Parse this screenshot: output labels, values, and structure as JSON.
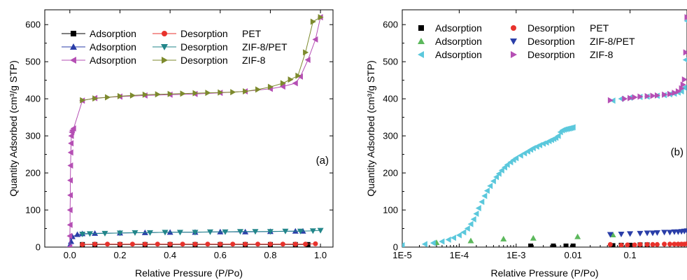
{
  "chart_data": [
    {
      "type": "line",
      "panel_label": "(a)",
      "xlabel": "Relative Pressure (P/Po)",
      "ylabel": "Quantity Adsorbed (cm³/g STP)",
      "xlim": [
        -0.1,
        1.05
      ],
      "ylim": [
        0,
        640
      ],
      "xticks": [
        "0.0",
        "0.2",
        "0.4",
        "0.6",
        "0.8",
        "1.0"
      ],
      "yticks": [
        "0",
        "100",
        "200",
        "300",
        "400",
        "500",
        "600"
      ],
      "legend": {
        "placement": "top-left",
        "col1": [
          "Adsorption",
          "Adsorption",
          "Adsorption"
        ],
        "col2": [
          "Desorption",
          "Desorption",
          "Desorption"
        ],
        "col3": [
          "PET",
          "ZIF-8/PET",
          "ZIF-8"
        ]
      },
      "series": [
        {
          "name": "Adsorption",
          "sample": "PET",
          "color": "#000000",
          "marker": "square",
          "x": [
            0.05,
            0.1,
            0.2,
            0.3,
            0.4,
            0.5,
            0.6,
            0.7,
            0.8,
            0.9,
            0.95
          ],
          "y": [
            7,
            7,
            7,
            7,
            7,
            7,
            7,
            7,
            7,
            7,
            7
          ]
        },
        {
          "name": "Desorption",
          "sample": "PET",
          "color": "#e8322c",
          "marker": "circle",
          "x": [
            0.98,
            0.94,
            0.9,
            0.85,
            0.8,
            0.75,
            0.7,
            0.65,
            0.6,
            0.55,
            0.5,
            0.45,
            0.4,
            0.35,
            0.3,
            0.25,
            0.2,
            0.15,
            0.1,
            0.05
          ],
          "y": [
            9,
            8,
            8,
            8,
            8,
            8,
            8,
            8,
            8,
            8,
            8,
            8,
            8,
            8,
            8,
            8,
            8,
            8,
            8,
            7
          ]
        },
        {
          "name": "Adsorption",
          "sample": "ZIF-8/PET",
          "color": "#2a3ea8",
          "marker": "triangle-up",
          "x": [
            0.0,
            0.005,
            0.01,
            0.03,
            0.05,
            0.1,
            0.2,
            0.3,
            0.4,
            0.5,
            0.6,
            0.7,
            0.8,
            0.9,
            0.93
          ],
          "y": [
            5,
            15,
            28,
            34,
            36,
            37,
            38,
            39,
            40,
            40,
            41,
            41,
            42,
            43,
            43
          ]
        },
        {
          "name": "Desorption",
          "sample": "ZIF-8/PET",
          "color": "#22868a",
          "marker": "triangle-down",
          "x": [
            1.0,
            0.97,
            0.92,
            0.86,
            0.8,
            0.74,
            0.68,
            0.62,
            0.56,
            0.5,
            0.44,
            0.38,
            0.32,
            0.26,
            0.2,
            0.14,
            0.08,
            0.05
          ],
          "y": [
            45,
            44,
            43,
            43,
            42,
            42,
            42,
            41,
            41,
            40,
            40,
            40,
            39,
            39,
            38,
            37,
            36,
            35
          ]
        },
        {
          "name": "Adsorption",
          "sample": "ZIF-8",
          "color": "#b54fb4",
          "marker": "triangle-left",
          "x": [
            0.0,
            0.0,
            0.001,
            0.001,
            0.002,
            0.002,
            0.003,
            0.004,
            0.005,
            0.006,
            0.008,
            0.01,
            0.015,
            0.05,
            0.1,
            0.2,
            0.3,
            0.4,
            0.5,
            0.6,
            0.7,
            0.8,
            0.85,
            0.9,
            0.92,
            0.95,
            0.98,
            1.0
          ],
          "y": [
            0,
            30,
            60,
            100,
            140,
            180,
            220,
            255,
            280,
            300,
            310,
            315,
            320,
            395,
            402,
            406,
            409,
            411,
            413,
            416,
            420,
            427,
            433,
            442,
            460,
            505,
            560,
            620
          ]
        },
        {
          "name": "Desorption",
          "sample": "ZIF-8",
          "color": "#7d8a2d",
          "marker": "triangle-right",
          "x": [
            1.0,
            0.97,
            0.94,
            0.91,
            0.88,
            0.85,
            0.8,
            0.75,
            0.7,
            0.65,
            0.6,
            0.55,
            0.5,
            0.45,
            0.4,
            0.35,
            0.3,
            0.25,
            0.2,
            0.15,
            0.1,
            0.05
          ],
          "y": [
            620,
            608,
            525,
            462,
            452,
            442,
            432,
            425,
            420,
            418,
            417,
            416,
            415,
            414,
            413,
            412,
            411,
            409,
            407,
            404,
            401,
            396
          ]
        }
      ]
    },
    {
      "type": "scatter",
      "panel_label": "(b)",
      "xlabel": "Relative Pressure (P/Po)",
      "ylabel": "Quantity Adsorbed (cm³/g STP)",
      "xscale": "log",
      "xlim": [
        1e-05,
        1
      ],
      "ylim": [
        0,
        640
      ],
      "xticks": [
        "1E-5",
        "1E-4",
        "1E-3",
        "0.01",
        "0.1"
      ],
      "yticks": [
        "0",
        "100",
        "200",
        "300",
        "400",
        "500",
        "600"
      ],
      "legend": {
        "placement": "top-left",
        "col1": [
          "Adsorption",
          "Adsorption",
          "Adsorption"
        ],
        "col2": [
          "Desorption",
          "Desorption",
          "Desorption"
        ],
        "col3": [
          "PET",
          "ZIF-8/PET",
          "ZIF-8"
        ]
      },
      "series": [
        {
          "name": "Adsorption",
          "sample": "PET",
          "color": "#000000",
          "marker": "square",
          "x": [
            0.0018,
            0.0045,
            0.0075,
            0.01,
            0.05,
            0.07,
            0.1,
            0.15,
            0.2
          ],
          "y": [
            3,
            3,
            3,
            3,
            4,
            5,
            5,
            6,
            6
          ]
        },
        {
          "name": "Adsorption",
          "sample": "ZIF-8/PET",
          "color": "#5cb85c",
          "marker": "triangle-up",
          "x": [
            4e-05,
            0.00016,
            0.0006,
            0.002,
            0.012,
            0.05
          ],
          "y": [
            12,
            17,
            22,
            24,
            28,
            33
          ]
        },
        {
          "name": "Adsorption",
          "sample": "ZIF-8",
          "color": "#5bc8dc",
          "marker": "triangle-left",
          "x": [
            1e-05,
            2.5e-05,
            3.5e-05,
            5e-05,
            6.5e-05,
            8e-05,
            0.0001,
            0.00012,
            0.00014,
            0.00016,
            0.00018,
            0.0002,
            0.00022,
            0.00025,
            0.00028,
            0.00031,
            0.00035,
            0.0004,
            0.00045,
            0.0005,
            0.00056,
            0.00063,
            0.0007,
            0.0008,
            0.0009,
            0.001,
            0.0012,
            0.0014,
            0.0016,
            0.0018,
            0.002,
            0.0023,
            0.0026,
            0.003,
            0.0034,
            0.0038,
            0.0042,
            0.0046,
            0.005,
            0.0055,
            0.006,
            0.0065,
            0.007,
            0.0075,
            0.008,
            0.0085,
            0.009,
            0.0095,
            0.01,
            0.05,
            0.07,
            0.1,
            0.15,
            0.2,
            0.3,
            0.4,
            0.5,
            0.6,
            0.7,
            0.8,
            0.9,
            0.95,
            1.0
          ],
          "y": [
            5,
            8,
            11,
            15,
            20,
            25,
            32,
            40,
            50,
            62,
            75,
            90,
            105,
            122,
            138,
            152,
            165,
            178,
            189,
            198,
            207,
            215,
            222,
            229,
            235,
            240,
            247,
            253,
            258,
            263,
            267,
            271,
            275,
            279,
            282,
            286,
            289,
            292,
            295,
            300,
            310,
            315,
            317,
            318,
            319,
            320,
            321,
            322,
            323,
            395,
            400,
            403,
            405,
            406,
            408,
            410,
            412,
            414,
            417,
            420,
            430,
            505,
            610
          ]
        },
        {
          "name": "Desorption",
          "sample": "PET",
          "color": "#e8322c",
          "marker": "circle",
          "x": [
            0.045,
            0.07,
            0.09,
            0.12,
            0.15,
            0.2,
            0.25,
            0.3,
            0.4,
            0.5,
            0.6,
            0.7,
            0.8,
            0.9,
            1.0
          ],
          "y": [
            7,
            5,
            6,
            6,
            7,
            7,
            7,
            7,
            8,
            8,
            8,
            8,
            8,
            8,
            9
          ]
        },
        {
          "name": "Desorption",
          "sample": "ZIF-8/PET",
          "color": "#2a3ea8",
          "marker": "triangle-down",
          "x": [
            0.045,
            0.07,
            0.1,
            0.15,
            0.2,
            0.25,
            0.3,
            0.4,
            0.5,
            0.6,
            0.7,
            0.8,
            0.9,
            1.0
          ],
          "y": [
            34,
            35,
            36,
            37,
            38,
            38,
            39,
            40,
            40,
            41,
            41,
            42,
            43,
            44
          ]
        },
        {
          "name": "Desorption",
          "sample": "ZIF-8",
          "color": "#b54fb4",
          "marker": "triangle-right",
          "x": [
            0.045,
            0.08,
            0.1,
            0.12,
            0.15,
            0.2,
            0.25,
            0.3,
            0.4,
            0.5,
            0.6,
            0.7,
            0.8,
            0.85,
            0.9,
            0.95,
            1.0
          ],
          "y": [
            396,
            400,
            402,
            404,
            406,
            407,
            408,
            409,
            411,
            413,
            416,
            420,
            428,
            438,
            452,
            525,
            620
          ]
        }
      ]
    }
  ]
}
